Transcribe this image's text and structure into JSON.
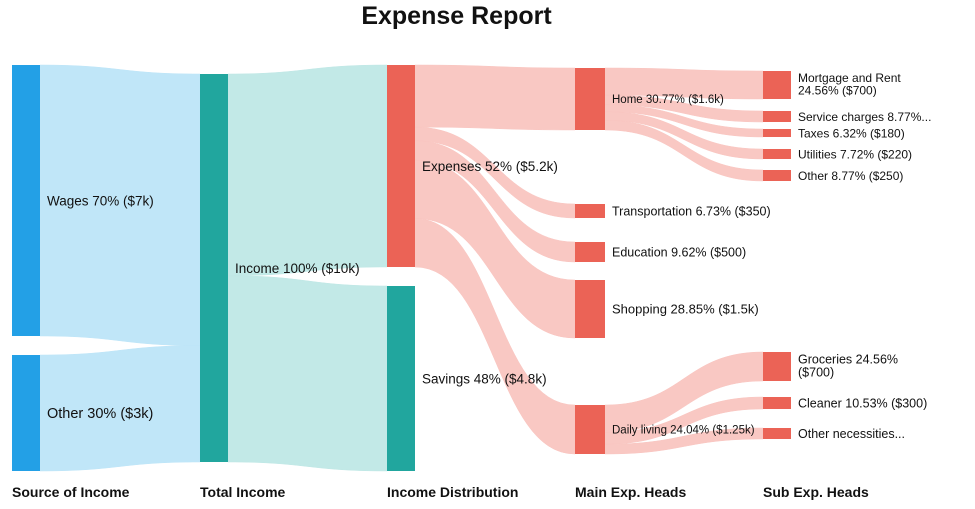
{
  "title": "Expense Report",
  "chart_data": {
    "type": "sankey",
    "title": "Expense Report",
    "units": "$",
    "columns": [
      "Source of Income",
      "Total Income",
      "Income Distribution",
      "Main Exp. Heads",
      "Sub Exp. Heads"
    ],
    "nodes": [
      {
        "id": "wages",
        "label": "Wages 70% ($7k)",
        "column": 0,
        "value": 7000,
        "color": "#23a0e6"
      },
      {
        "id": "other_income",
        "label": "Other 30% ($3k)",
        "column": 0,
        "value": 3000,
        "color": "#23a0e6"
      },
      {
        "id": "income",
        "label": "Income 100% ($10k)",
        "column": 1,
        "value": 10000,
        "color": "#21a69e"
      },
      {
        "id": "expenses",
        "label": "Expenses 52% ($5.2k)",
        "column": 2,
        "value": 5200,
        "color": "#eb6356"
      },
      {
        "id": "savings",
        "label": "Savings 48% ($4.8k)",
        "column": 2,
        "value": 4800,
        "color": "#21a69e"
      },
      {
        "id": "home",
        "label": "Home 30.77% ($1.6k)",
        "column": 3,
        "value": 1600,
        "color": "#eb6356"
      },
      {
        "id": "transportation",
        "label": "Transportation 6.73% ($350)",
        "column": 3,
        "value": 350,
        "color": "#eb6356"
      },
      {
        "id": "education",
        "label": "Education 9.62% ($500)",
        "column": 3,
        "value": 500,
        "color": "#eb6356"
      },
      {
        "id": "shopping",
        "label": "Shopping 28.85% ($1.5k)",
        "column": 3,
        "value": 1500,
        "color": "#eb6356"
      },
      {
        "id": "daily_living",
        "label": "Daily living 24.04% ($1.25k)",
        "column": 3,
        "value": 1250,
        "color": "#eb6356"
      },
      {
        "id": "mortgage",
        "label": "Mortgage and Rent 24.56% ($700)",
        "column": 4,
        "value": 700,
        "color": "#eb6356"
      },
      {
        "id": "service",
        "label": "Service charges 8.77%...",
        "column": 4,
        "value": 250,
        "color": "#eb6356"
      },
      {
        "id": "taxes",
        "label": "Taxes 6.32% ($180)",
        "column": 4,
        "value": 180,
        "color": "#eb6356"
      },
      {
        "id": "utilities",
        "label": "Utilities 7.72% ($220)",
        "column": 4,
        "value": 220,
        "color": "#eb6356"
      },
      {
        "id": "other_home",
        "label": "Other 8.77% ($250)",
        "column": 4,
        "value": 250,
        "color": "#eb6356"
      },
      {
        "id": "groceries",
        "label": "Groceries 24.56% ($700)",
        "column": 4,
        "value": 700,
        "color": "#eb6356"
      },
      {
        "id": "cleaner",
        "label": "Cleaner 10.53% ($300)",
        "column": 4,
        "value": 300,
        "color": "#eb6356"
      },
      {
        "id": "other_necessities",
        "label": "Other necessities...",
        "column": 4,
        "value": 250,
        "color": "#eb6356"
      }
    ],
    "links": [
      {
        "source": "wages",
        "target": "income",
        "value": 7000
      },
      {
        "source": "other_income",
        "target": "income",
        "value": 3000
      },
      {
        "source": "income",
        "target": "expenses",
        "value": 5200
      },
      {
        "source": "income",
        "target": "savings",
        "value": 4800
      },
      {
        "source": "expenses",
        "target": "home",
        "value": 1600
      },
      {
        "source": "expenses",
        "target": "transportation",
        "value": 350
      },
      {
        "source": "expenses",
        "target": "education",
        "value": 500
      },
      {
        "source": "expenses",
        "target": "shopping",
        "value": 1500
      },
      {
        "source": "expenses",
        "target": "daily_living",
        "value": 1250
      },
      {
        "source": "home",
        "target": "mortgage",
        "value": 700
      },
      {
        "source": "home",
        "target": "service",
        "value": 250
      },
      {
        "source": "home",
        "target": "taxes",
        "value": 180
      },
      {
        "source": "home",
        "target": "utilities",
        "value": 220
      },
      {
        "source": "home",
        "target": "other_home",
        "value": 250
      },
      {
        "source": "daily_living",
        "target": "groceries",
        "value": 700
      },
      {
        "source": "daily_living",
        "target": "cleaner",
        "value": 300
      },
      {
        "source": "daily_living",
        "target": "other_necessities",
        "value": 250
      }
    ],
    "link_colors": {
      "blue": "#bde5f8",
      "teal": "#bfe8e6",
      "red": "#f9c5c0"
    }
  }
}
